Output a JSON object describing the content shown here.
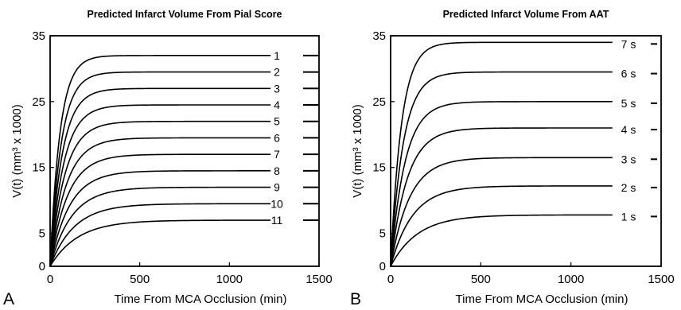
{
  "chart_data": [
    {
      "type": "line",
      "panel_label": "A",
      "title": "Predicted Infarct Volume From Pial Score",
      "xlabel": "Time  From MCA Occlusion (min)",
      "ylabel": "V(t) (mm³ x 1000)",
      "xlim": [
        0,
        1500
      ],
      "ylim": [
        0,
        35
      ],
      "xticks": [
        "0",
        "500",
        "1000",
        "1500"
      ],
      "yticks": [
        "0",
        "5",
        "15",
        "25",
        "35"
      ],
      "legend_position": "right",
      "x_end": 1230,
      "series": [
        {
          "name": "1",
          "plateau": 32.0,
          "tau": 55
        },
        {
          "name": "2",
          "plateau": 29.5,
          "tau": 62
        },
        {
          "name": "3",
          "plateau": 27.0,
          "tau": 68
        },
        {
          "name": "4",
          "plateau": 24.5,
          "tau": 75
        },
        {
          "name": "5",
          "plateau": 22.0,
          "tau": 82
        },
        {
          "name": "6",
          "plateau": 19.5,
          "tau": 90
        },
        {
          "name": "7",
          "plateau": 17.0,
          "tau": 98
        },
        {
          "name": "8",
          "plateau": 14.5,
          "tau": 108
        },
        {
          "name": "9",
          "plateau": 12.0,
          "tau": 120
        },
        {
          "name": "10",
          "plateau": 9.5,
          "tau": 135
        },
        {
          "name": "11",
          "plateau": 7.0,
          "tau": 155
        }
      ]
    },
    {
      "type": "line",
      "panel_label": "B",
      "title": "Predicted Infarct Volume From AAT",
      "xlabel": "Time  From MCA Occlusion (min)",
      "ylabel": "V(t) (mm³ x 1000)",
      "xlim": [
        0,
        1500
      ],
      "ylim": [
        0,
        35
      ],
      "xticks": [
        "0",
        "500",
        "1000",
        "1500"
      ],
      "yticks": [
        "0",
        "5",
        "15",
        "25",
        "35"
      ],
      "legend_position": "right",
      "x_end": 1230,
      "series": [
        {
          "name": "7 s",
          "plateau": 34.0,
          "tau": 60
        },
        {
          "name": "6 s",
          "plateau": 29.5,
          "tau": 70
        },
        {
          "name": "5 s",
          "plateau": 25.0,
          "tau": 80
        },
        {
          "name": "4 s",
          "plateau": 21.0,
          "tau": 92
        },
        {
          "name": "3 s",
          "plateau": 16.5,
          "tau": 105
        },
        {
          "name": "2 s",
          "plateau": 12.2,
          "tau": 122
        },
        {
          "name": "1 s",
          "plateau": 7.8,
          "tau": 150
        }
      ]
    }
  ]
}
